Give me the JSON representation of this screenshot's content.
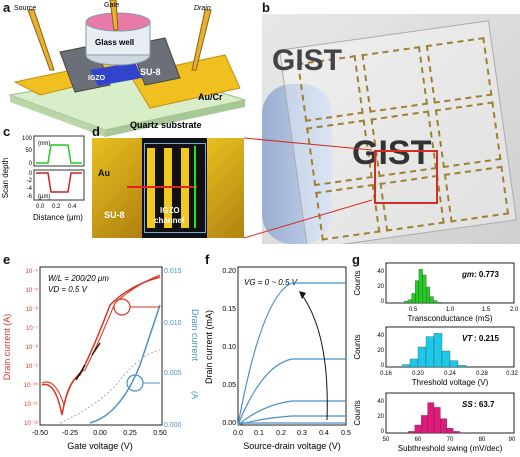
{
  "panels": {
    "a": {
      "label": "a",
      "source": "Source",
      "gate": "Gate",
      "drain": "Drain",
      "glass_well": "Glass well",
      "igzo": "IGZO",
      "su8": "SU-8",
      "aucr": "Au/Cr",
      "quartz": "Quartz substrate"
    },
    "b": {
      "label": "b",
      "gist": "GIST"
    },
    "c": {
      "label": "c",
      "ylabel": "Scan depth",
      "xlabel": "Distance (μm)",
      "unit_nm": "(nm)",
      "unit_um": "(μm)",
      "ticks_top": [
        "100",
        "50",
        "0"
      ],
      "ticks_bottom": [
        "0",
        "-2",
        "-4",
        "-6"
      ],
      "xticks": [
        "0.0",
        "0.2",
        "0.4"
      ]
    },
    "d": {
      "label": "d",
      "au": "Au",
      "su8": "SU-8",
      "igzo": "IGZO",
      "channel": "channel"
    },
    "e": {
      "label": "e",
      "wl": "W/L = 200/20 μm",
      "vd": "VD = 0.5 V",
      "ylabel_left": "Drain current (A)",
      "ylabel_right": "Drain current",
      "ylabel_right_unit": "(A",
      "xlabel": "Gate voltage (V)",
      "yticks_left": [
        "10⁻⁴",
        "10⁻⁵",
        "10⁻⁶",
        "10⁻⁷",
        "10⁻⁸",
        "10⁻⁹",
        "10⁻¹⁰",
        "10⁻¹¹",
        "10⁻¹²"
      ],
      "yticks_right": [
        "0.015",
        "0.010",
        "0.005",
        "0.000"
      ],
      "xticks": [
        "-0.50",
        "-0.25",
        "0.00",
        "0.25",
        "0.50"
      ]
    },
    "f": {
      "label": "f",
      "annotation": "VG = 0 ~ 0.5 V",
      "ylabel": "Drain current (mA)",
      "xlabel": "Source-drain voltage (V)",
      "yticks": [
        "0.20",
        "0.15",
        "0.10",
        "0.05",
        "0.00"
      ],
      "xticks": [
        "0.0",
        "0.1",
        "0.2",
        "0.3",
        "0.4",
        "0.5"
      ]
    },
    "g": {
      "label": "g",
      "gm_label": "gm",
      "gm_value": ": 0.773",
      "gm_xlabel": "Transconductance (mS)",
      "gm_xticks": [
        "0.5",
        "1.0",
        "1.5",
        "2.0"
      ],
      "vt_label": "VT",
      "vt_value": ": 0.215",
      "vt_xlabel": "Threshold voltage (V)",
      "vt_xticks": [
        "0.16",
        "0.20",
        "0.24",
        "0.28",
        "0.32"
      ],
      "ss_label": "SS",
      "ss_value": ": 63.7",
      "ss_xlabel": "Subthreshold swing (mV/dec)",
      "ss_xticks": [
        "50",
        "60",
        "70",
        "80",
        "90"
      ],
      "counts": "Counts",
      "yticks": [
        "40",
        "20",
        "0"
      ]
    }
  },
  "colors": {
    "red": "#d9341f",
    "blue": "#4a90c8",
    "green": "#22cc22",
    "cyan": "#1ec8e8",
    "magenta": "#e0197d",
    "gold": "#e8b820"
  },
  "chart_data": [
    {
      "type": "histogram",
      "panel": "g-top",
      "bins": [
        0.5,
        0.55,
        0.6,
        0.65,
        0.7,
        0.75,
        0.8,
        0.85,
        0.9,
        0.95
      ],
      "counts": [
        2,
        4,
        12,
        28,
        42,
        35,
        20,
        8,
        3,
        1
      ],
      "xlim": [
        0.25,
        2.0
      ],
      "ylim": [
        0,
        50
      ]
    },
    {
      "type": "histogram",
      "panel": "g-mid",
      "bins": [
        0.18,
        0.19,
        0.2,
        0.21,
        0.22,
        0.23,
        0.24,
        0.25
      ],
      "counts": [
        3,
        10,
        25,
        38,
        42,
        20,
        8,
        2
      ],
      "xlim": [
        0.16,
        0.32
      ],
      "ylim": [
        0,
        50
      ]
    },
    {
      "type": "histogram",
      "panel": "g-bot",
      "bins": [
        57,
        59,
        61,
        63,
        65,
        67,
        69,
        71
      ],
      "counts": [
        2,
        10,
        22,
        38,
        32,
        18,
        6,
        2
      ],
      "xlim": [
        50,
        90
      ],
      "ylim": [
        0,
        50
      ]
    }
  ]
}
